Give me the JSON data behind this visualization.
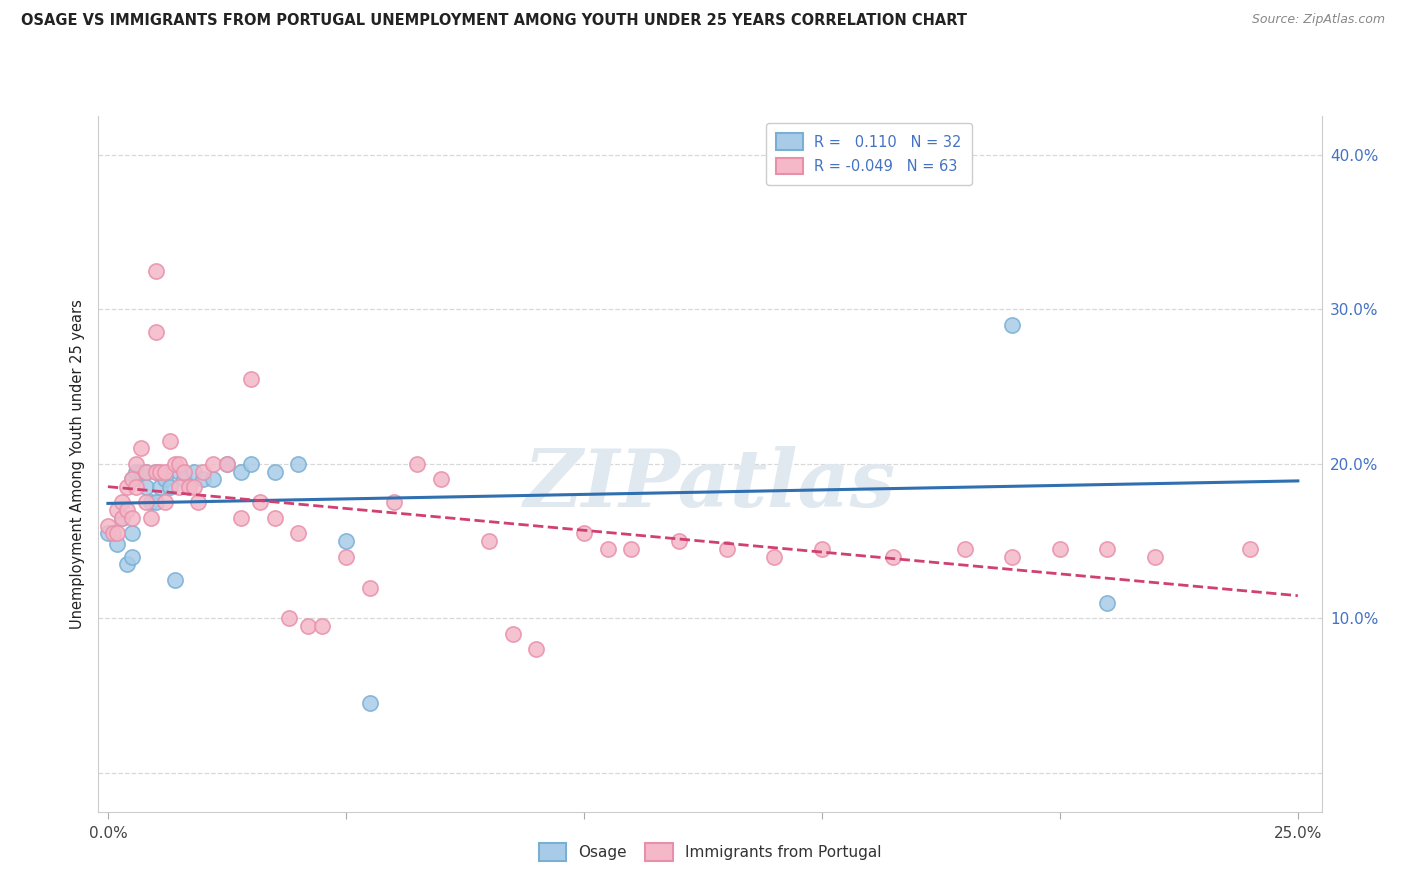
{
  "title": "OSAGE VS IMMIGRANTS FROM PORTUGAL UNEMPLOYMENT AMONG YOUTH UNDER 25 YEARS CORRELATION CHART",
  "source": "Source: ZipAtlas.com",
  "ylabel": "Unemployment Among Youth under 25 years",
  "xlim": [
    -0.002,
    0.255
  ],
  "ylim": [
    -0.025,
    0.425
  ],
  "xtick_pos": [
    0.0,
    0.05,
    0.1,
    0.15,
    0.2,
    0.25
  ],
  "xtick_labels": [
    "0.0%",
    "",
    "",
    "",
    "",
    "25.0%"
  ],
  "ytick_pos": [
    0.0,
    0.1,
    0.2,
    0.3,
    0.4
  ],
  "ytick_labels_right": [
    "",
    "10.0%",
    "20.0%",
    "30.0%",
    "40.0%"
  ],
  "legend_blue_r": "0.110",
  "legend_blue_n": "32",
  "legend_pink_r": "-0.049",
  "legend_pink_n": "63",
  "legend_label_blue": "Osage",
  "legend_label_pink": "Immigrants from Portugal",
  "watermark": "ZIPatlas",
  "blue_scatter_color": "#a8cce8",
  "blue_scatter_edge": "#7aafd4",
  "pink_scatter_color": "#f4b8c8",
  "pink_scatter_edge": "#e890aa",
  "blue_line_color": "#3070b0",
  "pink_line_color": "#d04070",
  "grid_color": "#d8d8d8",
  "title_color": "#222222",
  "source_color": "#888888",
  "axis_label_color": "#222222",
  "tick_color": "#4472C4",
  "osage_x": [
    0.0,
    0.002,
    0.003,
    0.004,
    0.005,
    0.005,
    0.005,
    0.006,
    0.007,
    0.008,
    0.008,
    0.009,
    0.01,
    0.01,
    0.011,
    0.012,
    0.013,
    0.014,
    0.015,
    0.016,
    0.018,
    0.02,
    0.022,
    0.025,
    0.028,
    0.03,
    0.035,
    0.04,
    0.05,
    0.055,
    0.19,
    0.21
  ],
  "osage_y": [
    0.155,
    0.148,
    0.165,
    0.135,
    0.155,
    0.19,
    0.14,
    0.195,
    0.195,
    0.195,
    0.185,
    0.175,
    0.195,
    0.175,
    0.185,
    0.19,
    0.185,
    0.125,
    0.195,
    0.19,
    0.195,
    0.19,
    0.19,
    0.2,
    0.195,
    0.2,
    0.195,
    0.2,
    0.15,
    0.045,
    0.29,
    0.11
  ],
  "portugal_x": [
    0.0,
    0.001,
    0.002,
    0.002,
    0.003,
    0.003,
    0.004,
    0.004,
    0.005,
    0.005,
    0.006,
    0.006,
    0.007,
    0.008,
    0.008,
    0.009,
    0.01,
    0.01,
    0.01,
    0.011,
    0.012,
    0.012,
    0.013,
    0.014,
    0.015,
    0.015,
    0.016,
    0.017,
    0.018,
    0.019,
    0.02,
    0.022,
    0.025,
    0.028,
    0.03,
    0.032,
    0.035,
    0.038,
    0.04,
    0.042,
    0.045,
    0.05,
    0.055,
    0.06,
    0.065,
    0.07,
    0.08,
    0.085,
    0.09,
    0.1,
    0.105,
    0.11,
    0.12,
    0.13,
    0.14,
    0.15,
    0.165,
    0.18,
    0.19,
    0.2,
    0.21,
    0.22,
    0.24
  ],
  "portugal_y": [
    0.16,
    0.155,
    0.17,
    0.155,
    0.175,
    0.165,
    0.185,
    0.17,
    0.19,
    0.165,
    0.2,
    0.185,
    0.21,
    0.195,
    0.175,
    0.165,
    0.325,
    0.285,
    0.195,
    0.195,
    0.195,
    0.175,
    0.215,
    0.2,
    0.2,
    0.185,
    0.195,
    0.185,
    0.185,
    0.175,
    0.195,
    0.2,
    0.2,
    0.165,
    0.255,
    0.175,
    0.165,
    0.1,
    0.155,
    0.095,
    0.095,
    0.14,
    0.12,
    0.175,
    0.2,
    0.19,
    0.15,
    0.09,
    0.08,
    0.155,
    0.145,
    0.145,
    0.15,
    0.145,
    0.14,
    0.145,
    0.14,
    0.145,
    0.14,
    0.145,
    0.145,
    0.14,
    0.145
  ]
}
